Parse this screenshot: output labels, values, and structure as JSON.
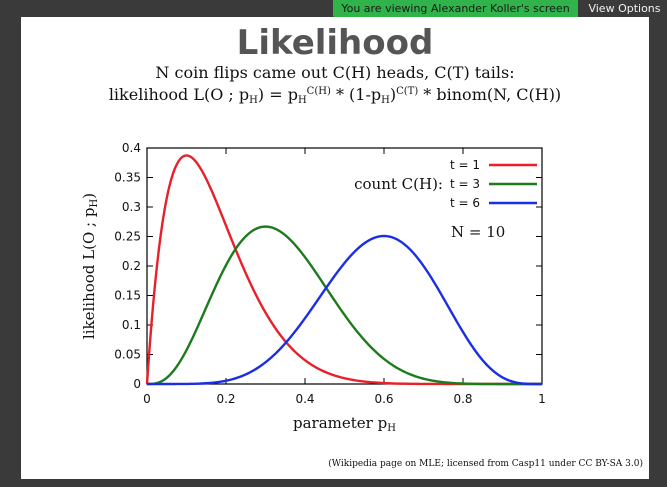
{
  "banner": {
    "sharing_text": "You are viewing Alexander Koller's screen",
    "view_options_label": "View Options"
  },
  "slide": {
    "title": "Likelihood",
    "subtitle_line1": "N coin flips came out C(H) heads, C(T) tails:",
    "subtitle_line2_parts": {
      "a": "likelihood L(O ; p",
      "a_sub": "H",
      "b": ") = p",
      "b_sub": "H",
      "b_sup": "C(H)",
      "c": " * (1-p",
      "c_sub": "H",
      "d": ")",
      "d_sup": "C(T)",
      "e": " * binom(N, C(H))"
    },
    "attribution": "(Wikipedia page on MLE; licensed from Casp11 under CC BY-SA 3.0)"
  },
  "chart_data": {
    "type": "line",
    "xlabel": "parameter pH",
    "ylabel": "likelihood L(O ; pH)",
    "xlim": [
      0,
      1
    ],
    "ylim": [
      0,
      0.4
    ],
    "x_ticks": [
      "0",
      "0.2",
      "0.4",
      "0.6",
      "0.8",
      "1"
    ],
    "y_ticks": [
      "0",
      "0.05",
      "0.1",
      "0.15",
      "0.2",
      "0.25",
      "0.3",
      "0.35",
      "0.4"
    ],
    "legend_title": "count C(H):",
    "annotation": "N = 10",
    "N": 10,
    "series": [
      {
        "name": "t = 1",
        "heads": 1,
        "color": "#e8202a"
      },
      {
        "name": "t = 3",
        "heads": 3,
        "color": "#1e7a1e"
      },
      {
        "name": "t = 6",
        "heads": 6,
        "color": "#1a2ee6"
      }
    ],
    "legend_position": "top-right",
    "grid": false
  }
}
